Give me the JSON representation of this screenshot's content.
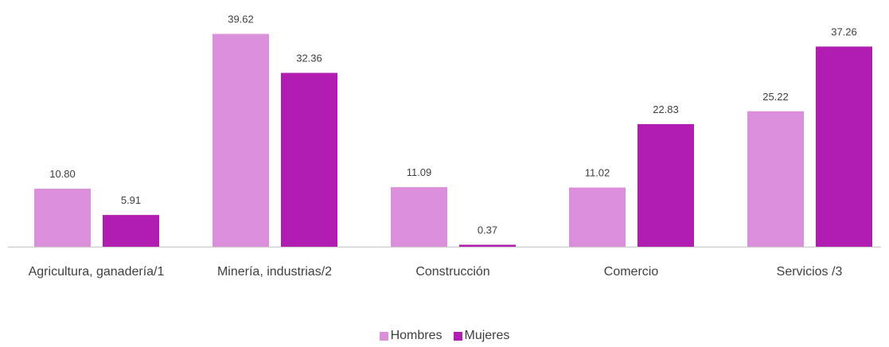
{
  "chart_data": {
    "type": "bar",
    "categories": [
      "Agricultura, ganadería/1",
      "Minería, industrias/2",
      "Construcción",
      "Comercio",
      "Servicios /3"
    ],
    "series": [
      {
        "name": "Hombres",
        "color": "#dc90dc",
        "values": [
          10.8,
          39.62,
          11.09,
          11.02,
          25.22
        ],
        "value_labels": [
          "10.80",
          "39.62",
          "11.09",
          "11.02",
          "25.22"
        ]
      },
      {
        "name": "Mujeres",
        "color": "#b11cb1",
        "values": [
          5.91,
          32.36,
          0.37,
          22.83,
          37.26
        ],
        "value_labels": [
          "5.91",
          "32.36",
          "0.37",
          "22.83",
          "37.26"
        ]
      }
    ],
    "ylim": [
      0,
      40
    ]
  }
}
